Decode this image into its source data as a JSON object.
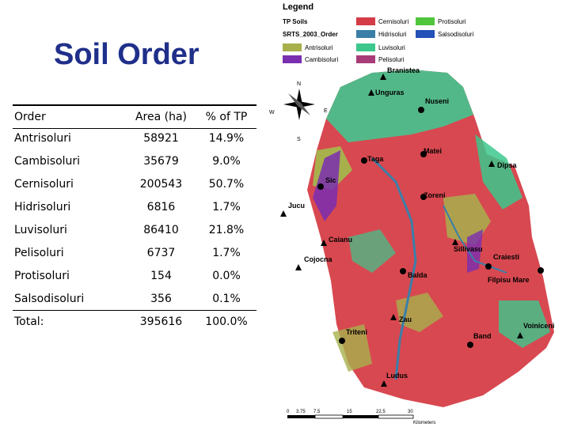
{
  "title": "Soil Order",
  "table": {
    "headers": [
      "Order",
      "Area (ha)",
      "% of TP"
    ],
    "rows": [
      {
        "order": "Antrisoluri",
        "area": "58921",
        "pct": "14.9%"
      },
      {
        "order": "Cambisoluri",
        "area": "35679",
        "pct": "9.0%"
      },
      {
        "order": "Cernisoluri",
        "area": "200543",
        "pct": "50.7%"
      },
      {
        "order": "Hidrisoluri",
        "area": "6816",
        "pct": "1.7%"
      },
      {
        "order": "Luvisoluri",
        "area": "86410",
        "pct": "21.8%"
      },
      {
        "order": "Pelisoluri",
        "area": "6737",
        "pct": "1.7%"
      },
      {
        "order": "Protisoluri",
        "area": "154",
        "pct": "0.0%"
      },
      {
        "order": "Salsodisoluri",
        "area": "356",
        "pct": "0.1%"
      }
    ],
    "total": {
      "label": "Total:",
      "area": "395616",
      "pct": "100.0%"
    }
  },
  "legend": {
    "title": "Legend",
    "group1": "TP Soils",
    "group2": "SRTS_2003_Order",
    "items": [
      {
        "label": "Cernisoluri",
        "color": "#d43c48"
      },
      {
        "label": "Protisoluri",
        "color": "#4fc63c"
      },
      {
        "label": "Hidrisoluri",
        "color": "#3a7fa8"
      },
      {
        "label": "Salsodisoluri",
        "color": "#2450b8"
      },
      {
        "label": "Antrisoluri",
        "color": "#a8b04c"
      },
      {
        "label": "Luvisoluri",
        "color": "#3cc88c"
      },
      {
        "label": "Cambisoluri",
        "color": "#7a2eb0"
      },
      {
        "label": "Pelisoluri",
        "color": "#a83c78"
      }
    ]
  },
  "towns": [
    {
      "name": "Branistea"
    },
    {
      "name": "Unguras"
    },
    {
      "name": "Nuseni"
    },
    {
      "name": "Matei"
    },
    {
      "name": "Taga"
    },
    {
      "name": "Dipsa"
    },
    {
      "name": "Sic"
    },
    {
      "name": "Jucu"
    },
    {
      "name": "Zoreni"
    },
    {
      "name": "Caianu"
    },
    {
      "name": "Sillivasu"
    },
    {
      "name": "Cojocna"
    },
    {
      "name": "Craiesti"
    },
    {
      "name": "Balda"
    },
    {
      "name": "Filpisu Mare"
    },
    {
      "name": "Zau"
    },
    {
      "name": "Triteni"
    },
    {
      "name": "Voiniceni"
    },
    {
      "name": "Band"
    },
    {
      "name": "Ludus"
    }
  ],
  "compass": {
    "n": "N",
    "s": "S",
    "e": "E",
    "w": "W"
  },
  "scale": {
    "ticks": [
      "0",
      "3.75",
      "7.5",
      "15",
      "22.5",
      "30"
    ],
    "unit": "Kilometers"
  }
}
